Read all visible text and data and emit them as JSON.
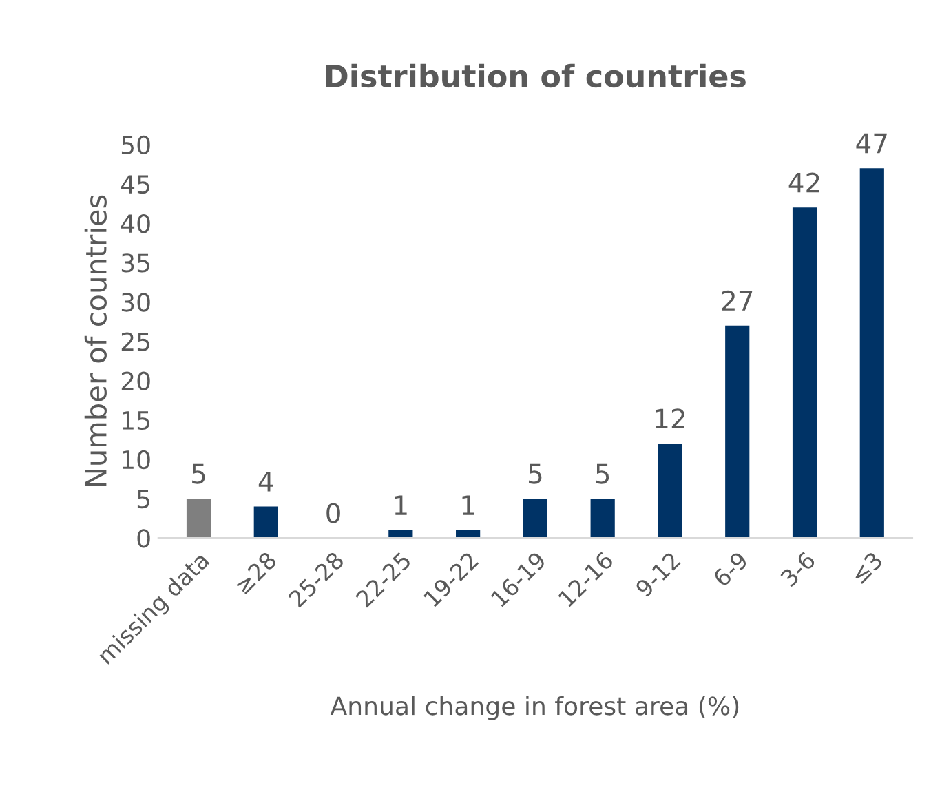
{
  "chart_data": {
    "type": "bar",
    "title": "Distribution of countries",
    "xlabel": "Annual change in forest area (%)",
    "ylabel": "Number of countries",
    "categories": [
      "missing data",
      "≥28",
      "25-28",
      "22-25",
      "19-22",
      "16-19",
      "12-16",
      "9-12",
      "6-9",
      "3-6",
      "≤3"
    ],
    "values": [
      5,
      4,
      0,
      1,
      1,
      5,
      5,
      12,
      27,
      42,
      47
    ],
    "colors": [
      "#7f7f7f",
      "#003366",
      "#003366",
      "#003366",
      "#003366",
      "#003366",
      "#003366",
      "#003366",
      "#003366",
      "#003366",
      "#003366"
    ],
    "ylim": [
      0,
      50
    ],
    "yticks": [
      0,
      5,
      10,
      15,
      20,
      25,
      30,
      35,
      40,
      45,
      50
    ],
    "grid": false,
    "data_labels": true
  }
}
